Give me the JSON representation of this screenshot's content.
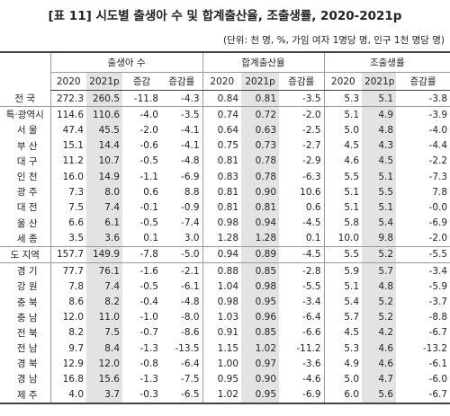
{
  "header": {
    "title": "[표 11] 시도별 출생아 수 및 합계출산율, 조출생률, 2020-2021p",
    "unit": "(단위: 천 명, %, 가임 여자 1명당 명, 인구 1천 명당 명)"
  },
  "table": {
    "groups": [
      "출생아 수",
      "합계출산율",
      "조출생률"
    ],
    "columns": [
      "2020",
      "2021p",
      "증감",
      "증감률",
      "2020",
      "2021p",
      "증감률",
      "2020",
      "2021p",
      "증감률"
    ],
    "rows": [
      [
        "전 국",
        "272.3",
        "260.5",
        "-11.8",
        "-4.3",
        "0.84",
        "0.81",
        "-3.5",
        "5.3",
        "5.1",
        "-3.8"
      ],
      [
        "특·광역시",
        "114.6",
        "110.6",
        "-4.0",
        "-3.5",
        "0.74",
        "0.72",
        "-2.0",
        "5.1",
        "4.9",
        "-3.9"
      ],
      [
        "서 울",
        "47.4",
        "45.5",
        "-2.0",
        "-4.1",
        "0.64",
        "0.63",
        "-2.5",
        "5.0",
        "4.8",
        "-4.0"
      ],
      [
        "부 산",
        "15.1",
        "14.4",
        "-0.6",
        "-4.1",
        "0.75",
        "0.73",
        "-2.7",
        "4.5",
        "4.3",
        "-4.4"
      ],
      [
        "대 구",
        "11.2",
        "10.7",
        "-0.5",
        "-4.8",
        "0.81",
        "0.78",
        "-2.9",
        "4.6",
        "4.5",
        "-2.2"
      ],
      [
        "인 천",
        "16.0",
        "14.9",
        "-1.1",
        "-6.9",
        "0.83",
        "0.78",
        "-6.3",
        "5.5",
        "5.1",
        "-7.3"
      ],
      [
        "광 주",
        "7.3",
        "8.0",
        "0.6",
        "8.8",
        "0.81",
        "0.90",
        "10.6",
        "5.1",
        "5.5",
        "7.8"
      ],
      [
        "대 전",
        "7.5",
        "7.4",
        "-0.1",
        "-0.9",
        "0.81",
        "0.81",
        "0.6",
        "5.1",
        "5.1",
        "-0.0"
      ],
      [
        "울 산",
        "6.6",
        "6.1",
        "-0.5",
        "-7.4",
        "0.98",
        "0.94",
        "-4.5",
        "5.8",
        "5.4",
        "-6.9"
      ],
      [
        "세 종",
        "3.5",
        "3.6",
        "0.1",
        "3.0",
        "1.28",
        "1.28",
        "0.1",
        "10.0",
        "9.8",
        "-2.0"
      ],
      [
        "도 지역",
        "157.7",
        "149.9",
        "-7.8",
        "-5.0",
        "0.94",
        "0.89",
        "-4.5",
        "5.5",
        "5.2",
        "-5.5"
      ],
      [
        "경 기",
        "77.7",
        "76.1",
        "-1.6",
        "-2.1",
        "0.88",
        "0.85",
        "-2.8",
        "5.9",
        "5.7",
        "-3.4"
      ],
      [
        "강 원",
        "7.8",
        "7.4",
        "-0.5",
        "-6.1",
        "1.04",
        "0.98",
        "-5.5",
        "5.1",
        "4.8",
        "-5.9"
      ],
      [
        "충 북",
        "8.6",
        "8.2",
        "-0.4",
        "-4.8",
        "0.98",
        "0.95",
        "-3.4",
        "5.4",
        "5.2",
        "-3.7"
      ],
      [
        "충 남",
        "12.0",
        "11.0",
        "-1.0",
        "-8.0",
        "1.03",
        "0.96",
        "-6.4",
        "5.7",
        "5.2",
        "-8.8"
      ],
      [
        "전 북",
        "8.2",
        "7.5",
        "-0.7",
        "-8.6",
        "0.91",
        "0.85",
        "-6.6",
        "4.5",
        "4.2",
        "-6.7"
      ],
      [
        "전 남",
        "9.7",
        "8.4",
        "-1.3",
        "-13.5",
        "1.15",
        "1.02",
        "-11.2",
        "5.3",
        "4.6",
        "-13.2"
      ],
      [
        "경 북",
        "12.9",
        "12.0",
        "-0.8",
        "-6.4",
        "1.00",
        "0.97",
        "-3.6",
        "4.9",
        "4.6",
        "-6.1"
      ],
      [
        "경 남",
        "16.8",
        "15.6",
        "-1.3",
        "-7.5",
        "0.95",
        "0.90",
        "-4.6",
        "5.0",
        "4.7",
        "-6.0"
      ],
      [
        "제 주",
        "4.0",
        "3.7",
        "-0.3",
        "-6.5",
        "1.02",
        "0.95",
        "-6.9",
        "6.0",
        "5.6",
        "-6.7"
      ]
    ]
  }
}
